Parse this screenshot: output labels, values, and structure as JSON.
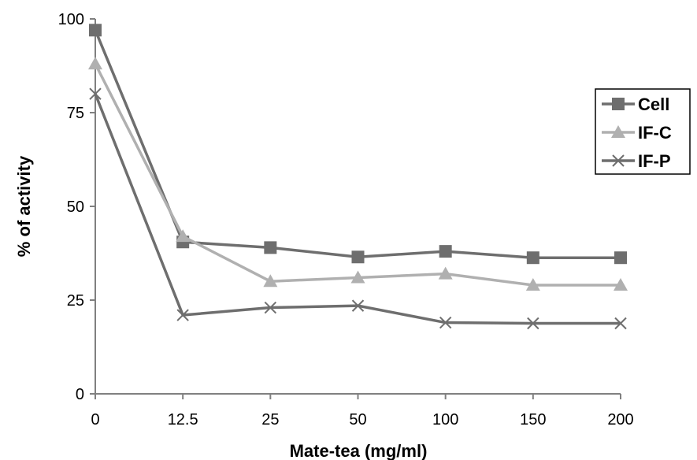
{
  "chart_data": {
    "type": "line",
    "categories": [
      "0",
      "12.5",
      "25",
      "50",
      "100",
      "150",
      "200"
    ],
    "xlabel": "Mate-tea (mg/ml)",
    "ylabel": "% of activity",
    "ylim": [
      0,
      100
    ],
    "yticks": [
      0,
      25,
      50,
      75,
      100
    ],
    "grid": false,
    "legend_position": "right",
    "series": [
      {
        "name": "Cell",
        "marker": "square",
        "color": "#6e6e6e",
        "values": [
          97,
          40.5,
          39,
          36.5,
          38,
          36.3,
          36.3
        ]
      },
      {
        "name": "IF-C",
        "marker": "triangle",
        "color": "#b0b0b0",
        "values": [
          88,
          42,
          30,
          31,
          32,
          29,
          29
        ]
      },
      {
        "name": "IF-P",
        "marker": "x",
        "color": "#6e6e6e",
        "values": [
          80,
          21,
          23,
          23.5,
          19,
          18.8,
          18.8
        ]
      }
    ]
  }
}
